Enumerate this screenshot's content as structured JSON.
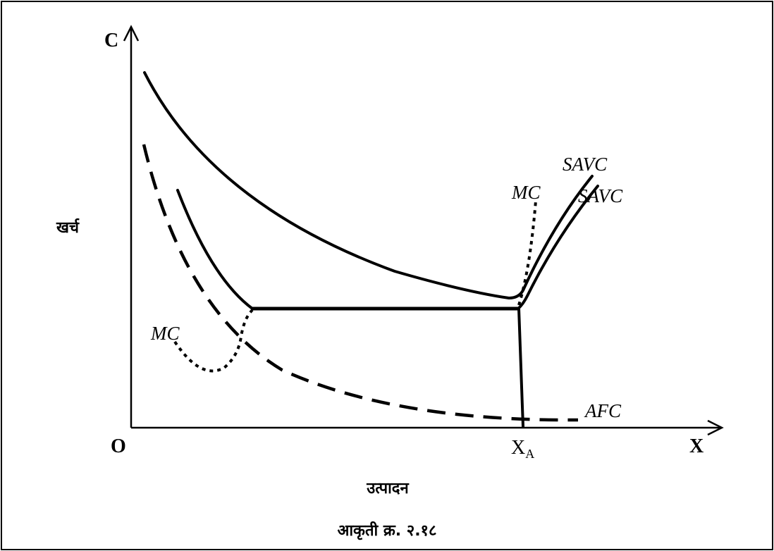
{
  "figure": {
    "y_axis_letter": "C",
    "x_axis_letter": "X",
    "origin_label": "O",
    "y_axis_title": "खर्च",
    "x_axis_title": "उत्पादन",
    "caption": "आकृती क्र. २.१८",
    "xa_label_base": "X",
    "xa_label_sub": "A",
    "curve_labels": {
      "savc_upper": "SAVC",
      "savc_lower": "SAVC",
      "mc_right": "MC",
      "mc_left": "MC",
      "afc": "AFC"
    }
  }
}
